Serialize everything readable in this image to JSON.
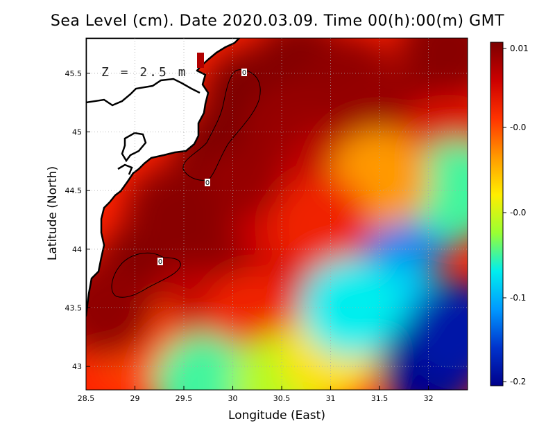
{
  "chart_data": {
    "type": "heatmap",
    "title": "Sea Level (cm). Date 2020.03.09. Time 00(h):00(m) GMT",
    "xlabel": "Longitude (East)",
    "ylabel": "Latitude (North)",
    "xlim": [
      28.5,
      32.4
    ],
    "ylim": [
      42.8,
      45.8
    ],
    "x_ticks": [
      "28.5",
      "29",
      "29.5",
      "30",
      "30.5",
      "31",
      "31.5",
      "32"
    ],
    "x_tick_values": [
      28.5,
      29,
      29.5,
      30,
      30.5,
      31,
      31.5,
      32
    ],
    "y_ticks": [
      "43",
      "43.5",
      "44",
      "44.5",
      "45",
      "45.5"
    ],
    "y_tick_values": [
      43,
      43.5,
      44,
      44.5,
      45,
      45.5
    ],
    "grid": true,
    "annotation": "Z = 2.5 m",
    "colorbar": {
      "labels": [
        "0.01",
        "-0.0",
        "-0.0",
        "-0.1",
        "-0.2"
      ],
      "colors": [
        "#7b0000",
        "#cc0000",
        "#ff3300",
        "#ff9900",
        "#ffee00",
        "#99ff33",
        "#00eeee",
        "#0099ff",
        "#0033cc",
        "#00008b"
      ]
    },
    "contours": [
      {
        "level": "0",
        "label": "0"
      },
      {
        "level": "0",
        "label": "0"
      },
      {
        "level": "0",
        "label": "0"
      },
      {
        "level": "0",
        "label": "0"
      }
    ],
    "field_anchors": [
      {
        "lon": 29.1,
        "lat": 43.8,
        "value": 0.01
      },
      {
        "lon": 29.9,
        "lat": 44.8,
        "value": 0.009
      },
      {
        "lon": 30.2,
        "lat": 45.3,
        "value": 0.01
      },
      {
        "lon": 30.7,
        "lat": 45.55,
        "value": 0.008
      },
      {
        "lon": 31.2,
        "lat": 45.4,
        "value": 0.004
      },
      {
        "lon": 31.6,
        "lat": 45.1,
        "value": 0.002
      },
      {
        "lon": 32.2,
        "lat": 45.7,
        "value": 0.006
      },
      {
        "lon": 32.2,
        "lat": 44.9,
        "value": -0.02
      },
      {
        "lon": 30.6,
        "lat": 45.0,
        "value": 0.002
      },
      {
        "lon": 31.0,
        "lat": 44.6,
        "value": -0.01
      },
      {
        "lon": 30.0,
        "lat": 44.4,
        "value": 0.002
      },
      {
        "lon": 30.4,
        "lat": 43.9,
        "value": -0.015
      },
      {
        "lon": 29.7,
        "lat": 43.8,
        "value": 0.004
      },
      {
        "lon": 29.4,
        "lat": 44.3,
        "value": 0.006
      },
      {
        "lon": 29.6,
        "lat": 43.4,
        "value": -0.01
      },
      {
        "lon": 30.2,
        "lat": 43.4,
        "value": -0.03
      },
      {
        "lon": 29.0,
        "lat": 43.2,
        "value": -0.04
      },
      {
        "lon": 28.7,
        "lat": 43.5,
        "value": 0.004
      },
      {
        "lon": 29.7,
        "lat": 42.85,
        "value": -0.12
      },
      {
        "lon": 30.5,
        "lat": 42.85,
        "value": -0.1
      },
      {
        "lon": 31.0,
        "lat": 43.1,
        "value": -0.08
      },
      {
        "lon": 31.3,
        "lat": 43.85,
        "value": -0.17
      },
      {
        "lon": 31.7,
        "lat": 43.5,
        "value": -0.14
      },
      {
        "lon": 32.0,
        "lat": 43.0,
        "value": -0.2
      },
      {
        "lon": 32.3,
        "lat": 43.3,
        "value": -0.19
      },
      {
        "lon": 31.9,
        "lat": 44.3,
        "value": -0.16
      },
      {
        "lon": 32.3,
        "lat": 44.5,
        "value": -0.12
      },
      {
        "lon": 31.5,
        "lat": 44.6,
        "value": -0.06
      },
      {
        "lon": 30.9,
        "lat": 44.2,
        "value": -0.03
      },
      {
        "lon": 31.2,
        "lat": 43.5,
        "value": -0.13
      }
    ]
  }
}
